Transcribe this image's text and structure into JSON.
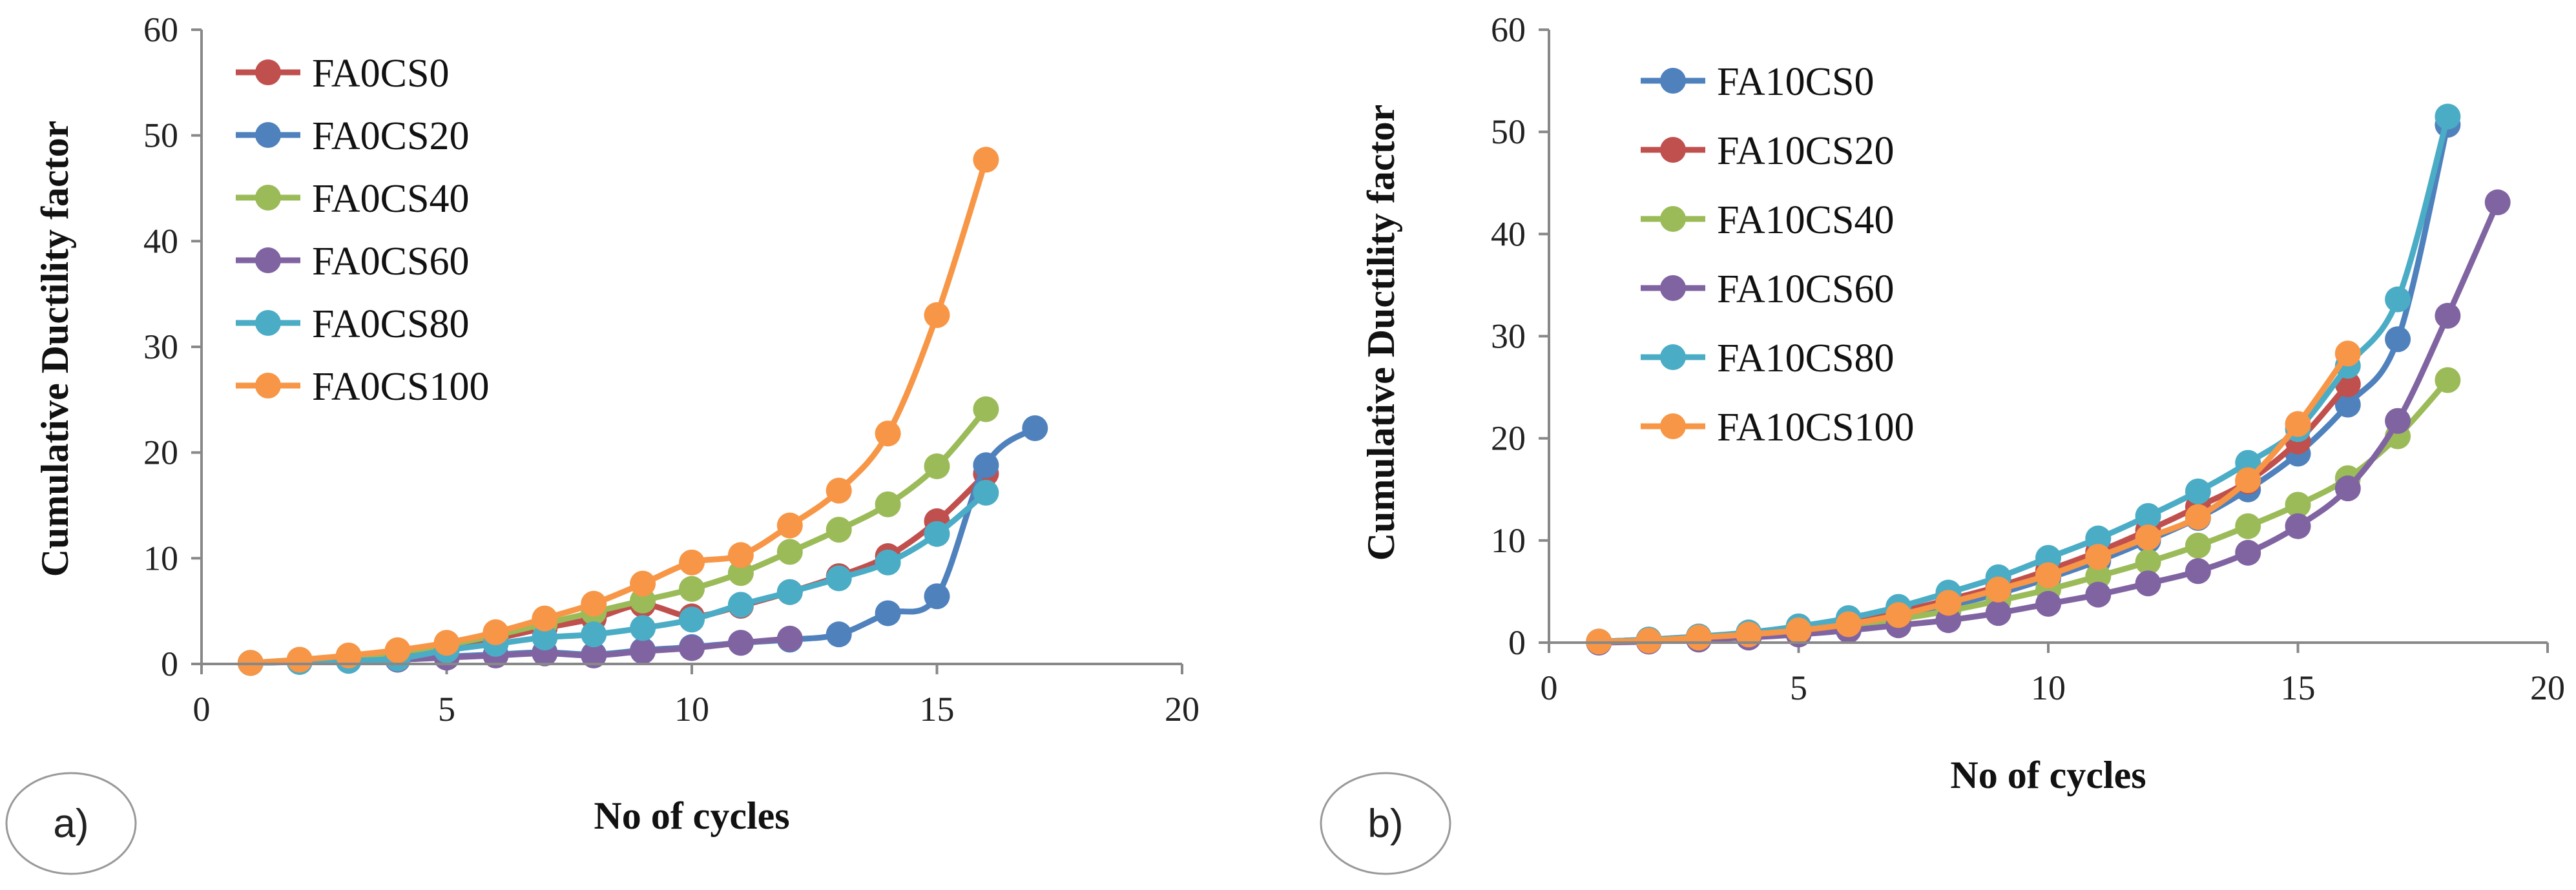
{
  "chart_data": [
    {
      "type": "line",
      "panel_label": "a)",
      "title": "",
      "xlabel": "No of cycles",
      "ylabel": "Cumulative Ductility factor",
      "xlim": [
        0,
        20
      ],
      "ylim": [
        0,
        60
      ],
      "xticks": [
        0,
        5,
        10,
        15,
        20
      ],
      "yticks": [
        0,
        10,
        20,
        30,
        40,
        50,
        60
      ],
      "grid": false,
      "legend_position": "top-left",
      "series": [
        {
          "name": "FA0CS0",
          "color": "#C0504D",
          "x": [
            1,
            2,
            3,
            4,
            5,
            6,
            7,
            8,
            9,
            10,
            11,
            12,
            13,
            14,
            15,
            16
          ],
          "y": [
            0.1,
            0.3,
            0.6,
            1.0,
            1.6,
            2.4,
            3.4,
            4.3,
            5.6,
            4.5,
            5.5,
            6.8,
            8.3,
            10.2,
            13.5,
            18.0
          ]
        },
        {
          "name": "FA0CS20",
          "color": "#4F81BD",
          "x": [
            1,
            2,
            3,
            4,
            5,
            6,
            7,
            8,
            9,
            10,
            11,
            12,
            13,
            14,
            15,
            16,
            17
          ],
          "y": [
            0.1,
            0.2,
            0.4,
            0.6,
            0.7,
            0.9,
            1.1,
            0.9,
            1.3,
            1.6,
            2.0,
            2.3,
            2.8,
            4.8,
            6.4,
            18.8,
            22.3
          ]
        },
        {
          "name": "FA0CS40",
          "color": "#9BBB59",
          "x": [
            1,
            2,
            3,
            4,
            5,
            6,
            7,
            8,
            9,
            10,
            11,
            12,
            13,
            14,
            15,
            16
          ],
          "y": [
            0.1,
            0.4,
            0.7,
            1.1,
            1.8,
            2.7,
            3.8,
            4.9,
            6.0,
            7.1,
            8.6,
            10.6,
            12.7,
            15.1,
            18.7,
            24.1
          ]
        },
        {
          "name": "FA0CS60",
          "color": "#8064A2",
          "x": [
            1,
            2,
            3,
            4,
            5,
            6,
            7,
            8,
            9,
            10,
            11,
            12
          ],
          "y": [
            0.1,
            0.2,
            0.3,
            0.4,
            0.6,
            0.8,
            1.0,
            0.8,
            1.2,
            1.5,
            2.0,
            2.4
          ]
        },
        {
          "name": "FA0CS80",
          "color": "#4BACC6",
          "x": [
            1,
            2,
            3,
            4,
            5,
            6,
            7,
            8,
            9,
            10,
            11,
            12,
            13,
            14,
            15,
            16
          ],
          "y": [
            0.1,
            0.2,
            0.3,
            0.5,
            1.3,
            1.9,
            2.5,
            2.8,
            3.4,
            4.2,
            5.6,
            6.8,
            8.1,
            9.6,
            12.3,
            16.2
          ]
        },
        {
          "name": "FA0CS100",
          "color": "#F79646",
          "x": [
            1,
            2,
            3,
            4,
            5,
            6,
            7,
            8,
            9,
            10,
            11,
            12,
            13,
            14,
            15,
            16
          ],
          "y": [
            0.1,
            0.4,
            0.8,
            1.3,
            2.0,
            3.0,
            4.3,
            5.7,
            7.6,
            9.6,
            10.3,
            13.1,
            16.4,
            21.8,
            33.0,
            47.7
          ]
        }
      ]
    },
    {
      "type": "line",
      "panel_label": "b)",
      "title": "",
      "xlabel": "No of cycles",
      "ylabel": "Cumulative Ductility factor",
      "xlim": [
        0,
        20
      ],
      "ylim": [
        0,
        60
      ],
      "xticks": [
        0,
        5,
        10,
        15,
        20
      ],
      "yticks": [
        0,
        10,
        20,
        30,
        40,
        50,
        60
      ],
      "grid": false,
      "legend_position": "top-left",
      "series": [
        {
          "name": "FA10CS0",
          "color": "#4F81BD",
          "x": [
            1,
            2,
            3,
            4,
            5,
            6,
            7,
            8,
            9,
            10,
            11,
            12,
            13,
            14,
            15,
            16,
            17,
            18
          ],
          "y": [
            0.1,
            0.2,
            0.5,
            0.9,
            1.3,
            1.9,
            2.7,
            3.6,
            4.8,
            6.3,
            8.0,
            10.0,
            12.2,
            15.0,
            18.5,
            23.3,
            29.7,
            50.7
          ]
        },
        {
          "name": "FA10CS20",
          "color": "#C0504D",
          "x": [
            1,
            2,
            3,
            4,
            5,
            6,
            7,
            8,
            9,
            10,
            11,
            12,
            13,
            14,
            15,
            16
          ],
          "y": [
            0.1,
            0.3,
            0.6,
            0.9,
            1.4,
            2.0,
            3.0,
            4.2,
            5.5,
            7.1,
            8.9,
            11.0,
            13.3,
            15.8,
            19.7,
            25.3
          ]
        },
        {
          "name": "FA10CS40",
          "color": "#9BBB59",
          "x": [
            1,
            2,
            3,
            4,
            5,
            6,
            7,
            8,
            9,
            10,
            11,
            12,
            13,
            14,
            15,
            16,
            17,
            18
          ],
          "y": [
            0.1,
            0.2,
            0.4,
            0.7,
            1.1,
            1.6,
            2.3,
            3.1,
            4.1,
            5.2,
            6.5,
            7.9,
            9.5,
            11.4,
            13.5,
            16.1,
            20.2,
            25.7
          ]
        },
        {
          "name": "FA10CS60",
          "color": "#8064A2",
          "x": [
            1,
            2,
            3,
            4,
            5,
            6,
            7,
            8,
            9,
            10,
            11,
            12,
            13,
            14,
            15,
            16,
            17,
            18,
            19
          ],
          "y": [
            0.0,
            0.1,
            0.3,
            0.5,
            0.8,
            1.2,
            1.7,
            2.2,
            2.9,
            3.8,
            4.7,
            5.8,
            7.0,
            8.8,
            11.4,
            15.1,
            21.7,
            32.0,
            43.1
          ]
        },
        {
          "name": "FA10CS80",
          "color": "#4BACC6",
          "x": [
            1,
            2,
            3,
            4,
            5,
            6,
            7,
            8,
            9,
            10,
            11,
            12,
            13,
            14,
            15,
            16,
            17,
            18
          ],
          "y": [
            0.1,
            0.3,
            0.6,
            1.0,
            1.6,
            2.4,
            3.5,
            4.9,
            6.4,
            8.3,
            10.2,
            12.4,
            14.8,
            17.6,
            20.9,
            27.1,
            33.6,
            51.5
          ]
        },
        {
          "name": "FA10CS100",
          "color": "#F79646",
          "x": [
            1,
            2,
            3,
            4,
            5,
            6,
            7,
            8,
            9,
            10,
            11,
            12,
            13,
            14,
            15,
            16
          ],
          "y": [
            0.1,
            0.2,
            0.5,
            0.8,
            1.2,
            1.8,
            2.7,
            3.9,
            5.2,
            6.6,
            8.4,
            10.3,
            12.3,
            15.9,
            21.4,
            28.3
          ]
        }
      ]
    }
  ]
}
